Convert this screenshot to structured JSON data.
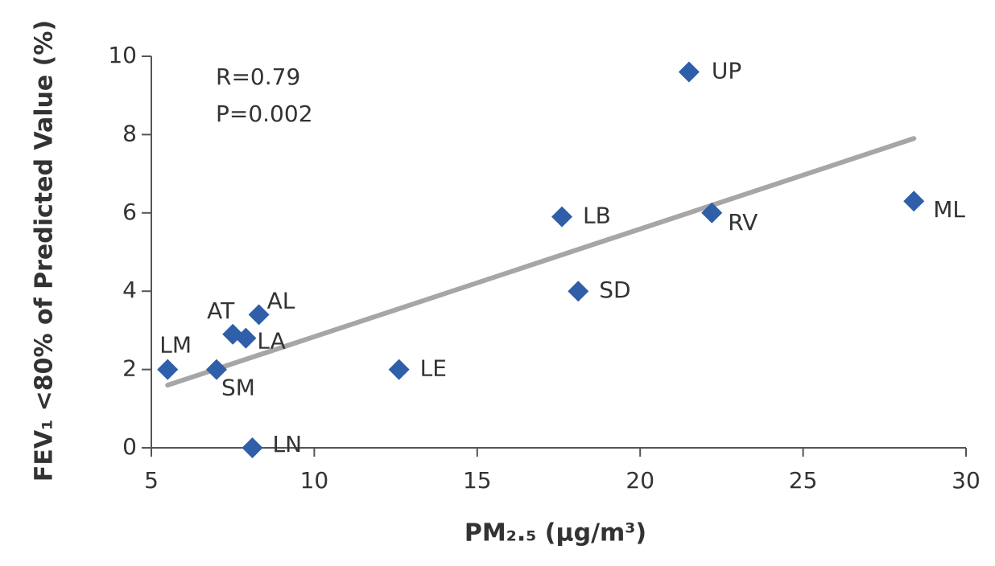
{
  "chart_data": {
    "type": "scatter",
    "x_label": "PM₂.₅ (μg/m³)",
    "y_label": "FEV₁ <80% of Predicted Value (%)",
    "annotations": [
      "R=0.79",
      "P=0.002"
    ],
    "x": [
      21.5,
      28.4,
      22.2,
      17.6,
      18.1,
      12.6,
      8.3,
      7.5,
      7.9,
      5.5,
      7.0,
      8.1
    ],
    "series": [
      {
        "color": "#2e5fa8",
        "values": [
          9.6,
          6.3,
          6.0,
          5.9,
          4.0,
          2.0,
          3.4,
          2.9,
          2.8,
          2.0,
          2.0,
          0
        ]
      }
    ],
    "point_labels": [
      "UP",
      "ML",
      "RV",
      "LB",
      "SD",
      "LE",
      "AL",
      "AT",
      "LA",
      "LM",
      "SM",
      "LN"
    ],
    "trend_line": {
      "color": "#a6a6a6",
      "x": [
        5.5,
        28.4
      ],
      "y": [
        1.6,
        7.9
      ]
    },
    "xlim": [
      5,
      30
    ],
    "xticks": [
      5,
      10,
      15,
      20,
      25,
      30
    ],
    "ylim": [
      0,
      10
    ],
    "yticks": [
      0,
      2,
      4,
      6,
      8,
      10
    ]
  }
}
